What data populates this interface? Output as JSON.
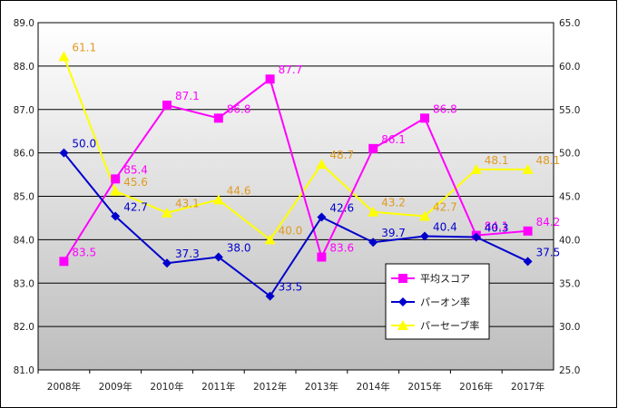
{
  "chart_data": {
    "type": "line",
    "categories": [
      "2008年",
      "2009年",
      "2010年",
      "2011年",
      "2012年",
      "2013年",
      "2014年",
      "2015年",
      "2016年",
      "2017年"
    ],
    "y_left": {
      "min": 81.0,
      "max": 89.0,
      "step": 1.0,
      "ticks": [
        "81.0",
        "82.0",
        "83.0",
        "84.0",
        "85.0",
        "86.0",
        "87.0",
        "88.0",
        "89.0"
      ]
    },
    "y_right": {
      "min": 25.0,
      "max": 65.0,
      "step": 5.0,
      "ticks": [
        "25.0",
        "30.0",
        "35.0",
        "40.0",
        "45.0",
        "50.0",
        "55.0",
        "60.0",
        "65.0"
      ]
    },
    "grid": true,
    "legend_position": "bottom-right",
    "series": [
      {
        "name": "平均スコア",
        "axis": "left",
        "color": "#ff00ff",
        "marker": "square",
        "values": [
          83.5,
          85.4,
          87.1,
          86.8,
          87.7,
          83.6,
          86.1,
          86.8,
          84.1,
          84.2
        ],
        "labels": [
          "83.5",
          "85.4",
          "87.1",
          "86.8",
          "87.7",
          "83.6",
          "86.1",
          "86.8",
          "84.1",
          "84.2"
        ]
      },
      {
        "name": "パーオン率",
        "axis": "right",
        "color": "#0000cc",
        "marker": "diamond",
        "values": [
          50.0,
          42.7,
          37.3,
          38.0,
          33.5,
          42.6,
          39.7,
          40.4,
          40.3,
          37.5
        ],
        "labels": [
          "50.0",
          "42.7",
          "37.3",
          "38.0",
          "33.5",
          "42.6",
          "39.7",
          "40.4",
          "40.3",
          "37.5"
        ]
      },
      {
        "name": "パーセーブ率",
        "axis": "right",
        "color": "#ffff00",
        "label_color": "#e09a20",
        "marker": "triangle",
        "values": [
          61.1,
          45.6,
          43.1,
          44.6,
          40.0,
          48.7,
          43.2,
          42.7,
          48.1,
          48.1
        ],
        "labels": [
          "61.1",
          "45.6",
          "43.1",
          "44.6",
          "40.0",
          "48.7",
          "43.2",
          "42.7",
          "48.1",
          "48.1"
        ]
      }
    ]
  }
}
